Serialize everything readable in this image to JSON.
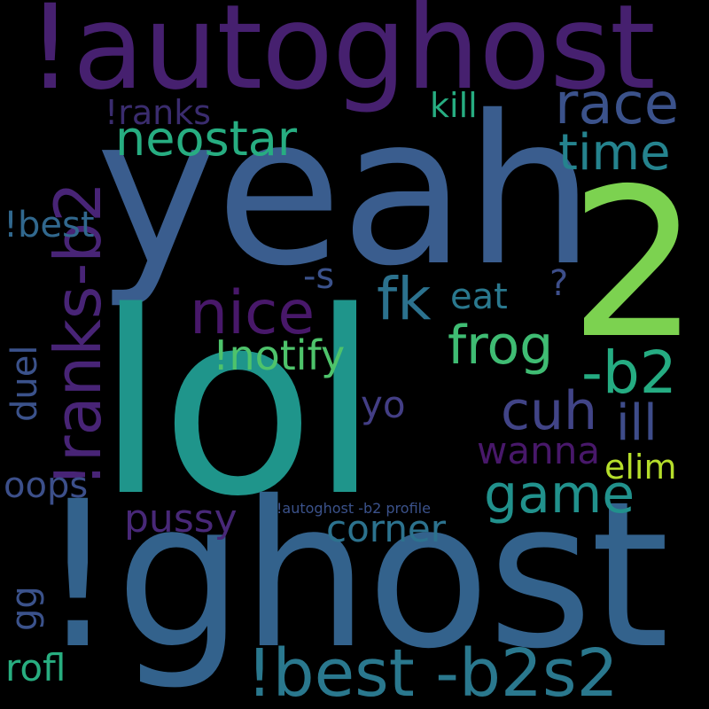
{
  "cloud": {
    "background": "#000000",
    "words": [
      {
        "id": "autoghost",
        "text": "!autoghost",
        "color": "#46206f"
      },
      {
        "id": "yeah",
        "text": "yeah",
        "color": "#3a5d8e"
      },
      {
        "id": "lol",
        "text": "lol",
        "color": "#1f958b"
      },
      {
        "id": "ghost",
        "text": "!ghost",
        "color": "#33628c"
      },
      {
        "id": "two",
        "text": "2",
        "color": "#7cd250"
      },
      {
        "id": "ranks-b2",
        "text": "!ranks-b2",
        "color": "#482476"
      },
      {
        "id": "race",
        "text": "race",
        "color": "#3b528b"
      },
      {
        "id": "neostar",
        "text": "neostar",
        "color": "#27ad81"
      },
      {
        "id": "time",
        "text": "time",
        "color": "#25838e"
      },
      {
        "id": "ranks",
        "text": "!ranks",
        "color": "#3a2c6e"
      },
      {
        "id": "kill",
        "text": "kill",
        "color": "#27ad81"
      },
      {
        "id": "nice",
        "text": "nice",
        "color": "#48186a"
      },
      {
        "id": "fk",
        "text": "fk",
        "color": "#2c728e"
      },
      {
        "id": "best",
        "text": "!best",
        "color": "#31688e"
      },
      {
        "id": "s",
        "text": "-s",
        "color": "#3b528b"
      },
      {
        "id": "eat",
        "text": "eat",
        "color": "#2a788e"
      },
      {
        "id": "question",
        "text": "?",
        "color": "#3d4e8a"
      },
      {
        "id": "frog",
        "text": "frog",
        "color": "#3fbc73"
      },
      {
        "id": "b2",
        "text": "-b2",
        "color": "#25ac82"
      },
      {
        "id": "notify",
        "text": "!notify",
        "color": "#4ec36b"
      },
      {
        "id": "duel",
        "text": "duel",
        "color": "#3b528b"
      },
      {
        "id": "cuh",
        "text": "cuh",
        "color": "#414487"
      },
      {
        "id": "ill",
        "text": "ill",
        "color": "#3e4c8a"
      },
      {
        "id": "yo",
        "text": "yo",
        "color": "#433e85"
      },
      {
        "id": "wanna",
        "text": "wanna",
        "color": "#48186a"
      },
      {
        "id": "elim",
        "text": "elim",
        "color": "#b5de2b"
      },
      {
        "id": "oops",
        "text": "oops",
        "color": "#3c4f8a"
      },
      {
        "id": "game",
        "text": "game",
        "color": "#21918c"
      },
      {
        "id": "pussy",
        "text": "pussy",
        "color": "#482878"
      },
      {
        "id": "autoghost-profile",
        "text": "!autoghost -b2 profile",
        "color": "#3b528b"
      },
      {
        "id": "corner",
        "text": "corner",
        "color": "#2c728e"
      },
      {
        "id": "gg",
        "text": "gg",
        "color": "#3b528b"
      },
      {
        "id": "rofl",
        "text": "rofl",
        "color": "#28ae80"
      },
      {
        "id": "best-b2s2",
        "text": "!best -b2s2",
        "color": "#2a788e"
      }
    ]
  }
}
